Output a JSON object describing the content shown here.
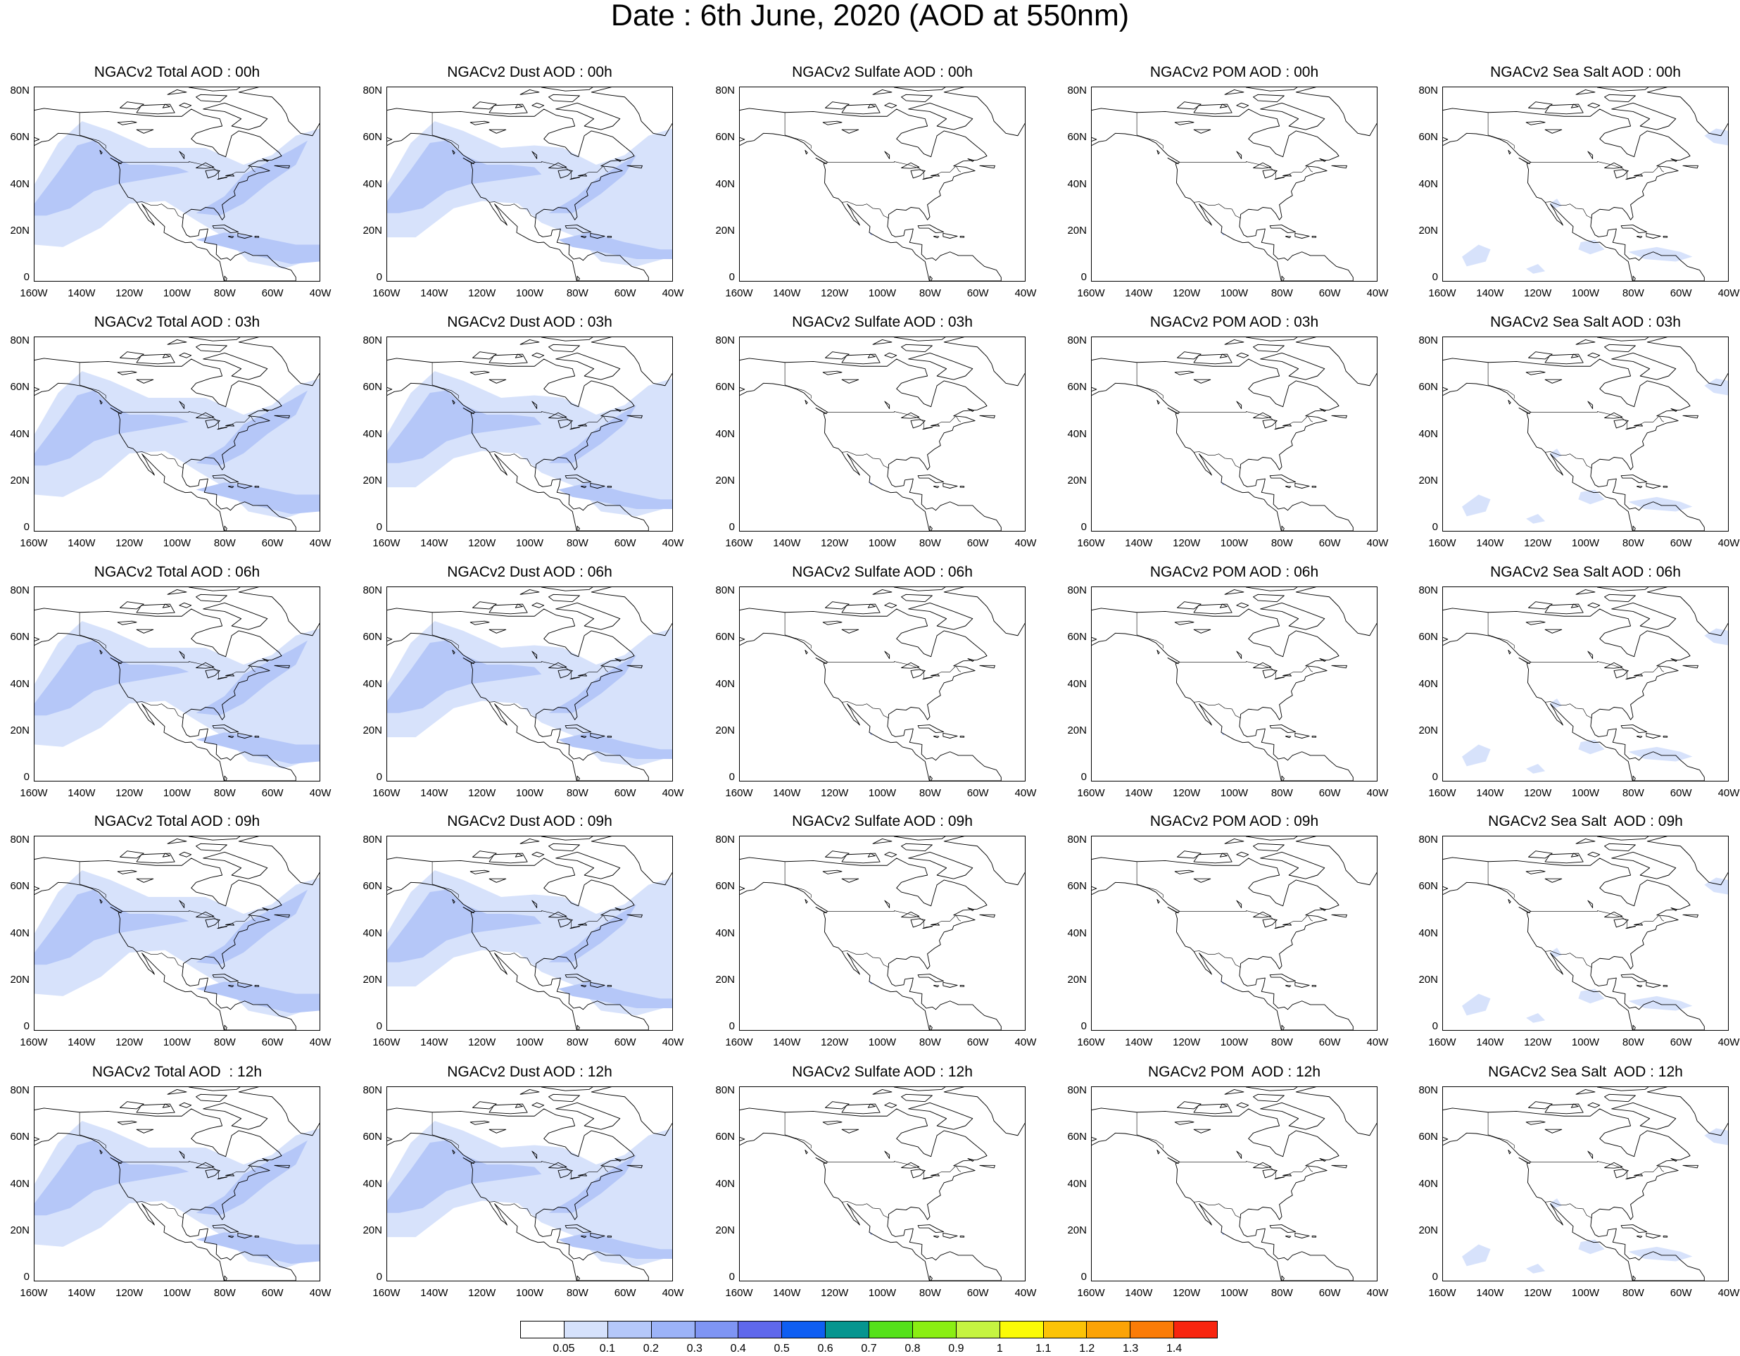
{
  "title": "Date : 6th June, 2020 (AOD at 550nm)",
  "axes": {
    "lon_ticks": [
      "160W",
      "140W",
      "120W",
      "100W",
      "80W",
      "60W",
      "40W"
    ],
    "lat_ticks": [
      "80N",
      "60N",
      "40N",
      "20N",
      "0"
    ],
    "lon_range": [
      -160,
      -40
    ],
    "lat_range": [
      0,
      80
    ]
  },
  "panels": [
    [
      "NGACv2 Total AOD : 00h",
      "NGACv2 Dust AOD : 00h",
      "NGACv2 Sulfate AOD : 00h",
      "NGACv2 POM AOD : 00h",
      "NGACv2 Sea Salt AOD : 00h"
    ],
    [
      "NGACv2 Total AOD : 03h",
      "NGACv2 Dust AOD : 03h",
      "NGACv2 Sulfate AOD : 03h",
      "NGACv2 POM AOD : 03h",
      "NGACv2 Sea Salt AOD : 03h"
    ],
    [
      "NGACv2 Total AOD : 06h",
      "NGACv2 Dust AOD : 06h",
      "NGACv2 Sulfate AOD : 06h",
      "NGACv2 POM AOD : 06h",
      "NGACv2 Sea Salt AOD : 06h"
    ],
    [
      "NGACv2 Total AOD : 09h",
      "NGACv2 Dust AOD : 09h",
      "NGACv2 Sulfate AOD : 09h",
      "NGACv2 POM AOD : 09h",
      "NGACv2 Sea Salt  AOD : 09h"
    ],
    [
      "NGACv2 Total AOD  : 12h",
      "NGACv2 Dust AOD : 12h",
      "NGACv2 Sulfate AOD : 12h",
      "NGACv2 POM  AOD : 12h",
      "NGACv2 Sea Salt  AOD : 12h"
    ]
  ],
  "colorbar": {
    "labels": [
      "0.05",
      "0.1",
      "0.2",
      "0.3",
      "0.4",
      "0.5",
      "0.6",
      "0.7",
      "0.8",
      "0.9",
      "1",
      "1.1",
      "1.2",
      "1.3",
      "1.4"
    ],
    "colors": [
      "#ffffff",
      "#d6e2fc",
      "#b5c8fa",
      "#9cb3f8",
      "#7f95f4",
      "#5f68ec",
      "#0f5ef2",
      "#06958f",
      "#55e11a",
      "#8aee13",
      "#c5f441",
      "#fbfb06",
      "#fcc307",
      "#fca306",
      "#fb7c07",
      "#f8250f"
    ]
  },
  "aerosol_colors": {
    "light": "#d7e2fb",
    "medium": "#b5c7f8",
    "dark": "#9db3f6"
  }
}
